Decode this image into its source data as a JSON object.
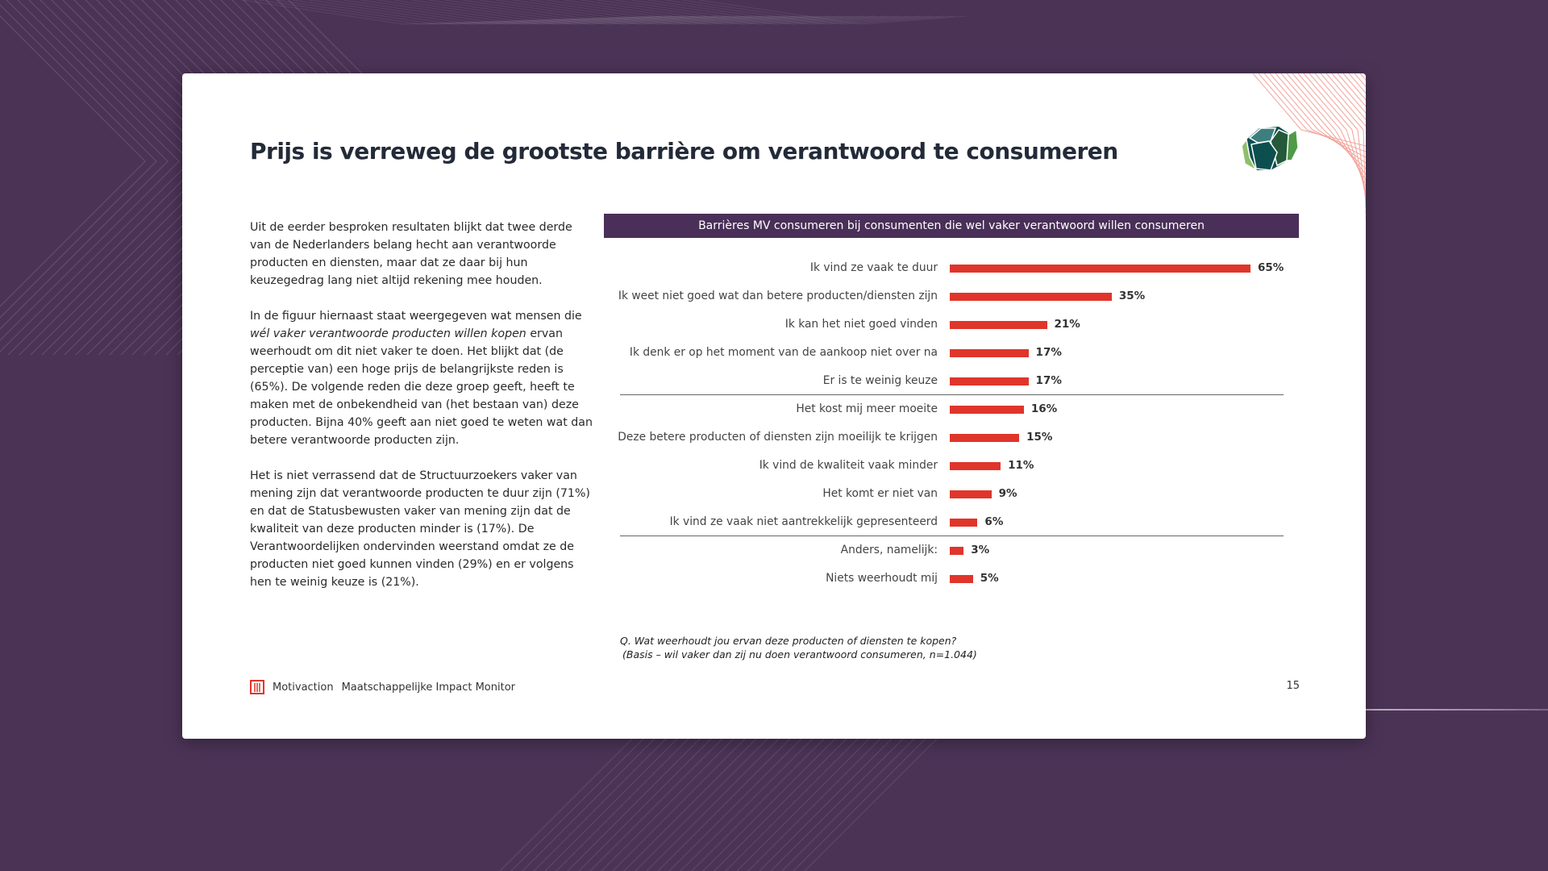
{
  "slide": {
    "title": "Prijs is verreweg de grootste barrière om verantwoord te consumeren",
    "body": {
      "p1": "Uit de eerder besproken resultaten blijkt dat twee derde van de Nederlanders belang hecht aan verantwoorde producten en diensten, maar dat ze daar bij hun keuzegedrag lang niet altijd rekening mee houden.",
      "p2_a": "In de figuur hiernaast staat weergegeven wat mensen die ",
      "p2_em": "wél vaker verantwoorde producten willen kopen",
      "p2_b": " ervan weerhoudt om dit niet vaker te doen. Het blijkt dat (de perceptie van) een hoge prijs de belangrijkste reden is (65%). De volgende reden die deze groep geeft, heeft te maken met de onbekendheid van (het bestaan van) deze producten. Bijna 40% geeft aan niet goed te weten wat dan betere verantwoorde producten zijn.",
      "p3": "Het is niet verrassend dat de Structuurzoekers vaker van mening zijn dat verantwoorde producten te duur zijn (71%) en dat de Statusbewusten vaker van mening zijn dat de kwaliteit van deze producten minder is (17%). De Verantwoordelijken ondervinden weerstand omdat ze de producten niet goed kunnen vinden (29%) en er volgens hen te weinig keuze is (21%)."
    },
    "footnote": {
      "question": "Q. Wat weerhoudt jou ervan deze producten of diensten te kopen?",
      "base": "(Basis – wil vaker dan zij nu doen verantwoord consumeren, n=1.044)"
    },
    "footer": {
      "brand": "Motivaction",
      "product": "Maatschappelijke Impact Monitor",
      "page": "15"
    },
    "colors": {
      "background": "#4b3356",
      "bar": "#e0352b",
      "header": "#4a2f58"
    }
  },
  "chart_data": {
    "type": "bar",
    "orientation": "horizontal",
    "title": "Barrières MV consumeren bij consumenten die wel vaker verantwoord willen consumeren",
    "categories": [
      "Ik vind ze vaak te duur",
      "Ik weet niet goed wat dan betere producten/diensten zijn",
      "Ik kan het niet goed vinden",
      "Ik denk er op het moment van de aankoop niet over na",
      "Er is te weinig keuze",
      "Het kost mij meer moeite",
      "Deze betere producten of diensten zijn moeilijk te krijgen",
      "Ik vind de kwaliteit vaak minder",
      "Het komt er niet van",
      "Ik vind ze vaak niet aantrekkelijk gepresenteerd",
      "Anders, namelijk:",
      "Niets weerhoudt mij"
    ],
    "values": [
      65,
      35,
      21,
      17,
      17,
      16,
      15,
      11,
      9,
      6,
      3,
      5
    ],
    "value_labels": [
      "65%",
      "35%",
      "21%",
      "17%",
      "17%",
      "16%",
      "15%",
      "11%",
      "9%",
      "6%",
      "3%",
      "5%"
    ],
    "unit": "%",
    "separators_after": [
      4,
      9
    ],
    "grid": false
  }
}
